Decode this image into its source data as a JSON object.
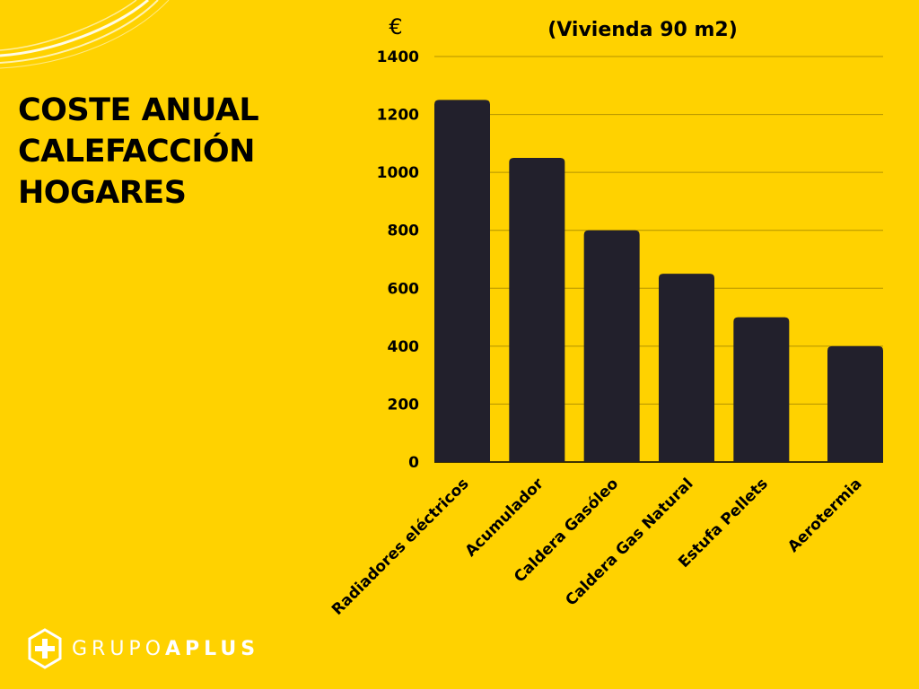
{
  "heading": {
    "line1": "COSTE ANUAL",
    "line2": "CALEFACCIÓN",
    "line3": "HOGARES"
  },
  "logo": {
    "part1": "GRUPO",
    "part2": "APLUS"
  },
  "colors": {
    "background": "#FFD200",
    "bar": "#22202C",
    "grid": "#B39200",
    "logo": "#FFFFFF"
  },
  "chart_data": {
    "type": "bar",
    "title": "(Vivienda 90 m2)",
    "unit_label": "€",
    "xlabel": "",
    "ylabel": "€",
    "ylim": [
      0,
      1400
    ],
    "yticks": [
      "0",
      "200",
      "400",
      "600",
      "800",
      "1000",
      "1200",
      "1400"
    ],
    "ytick_values": [
      0,
      200,
      400,
      600,
      800,
      1000,
      1200,
      1400
    ],
    "grid": true,
    "legend": "none",
    "categories": [
      "Radiadores eléctricos",
      "Acumulador",
      "Caldera Gasóleo",
      "Caldera Gas Natural",
      "Estufa Pellets",
      "Aerotermia"
    ],
    "values": [
      1250,
      1050,
      800,
      650,
      500,
      400
    ]
  }
}
